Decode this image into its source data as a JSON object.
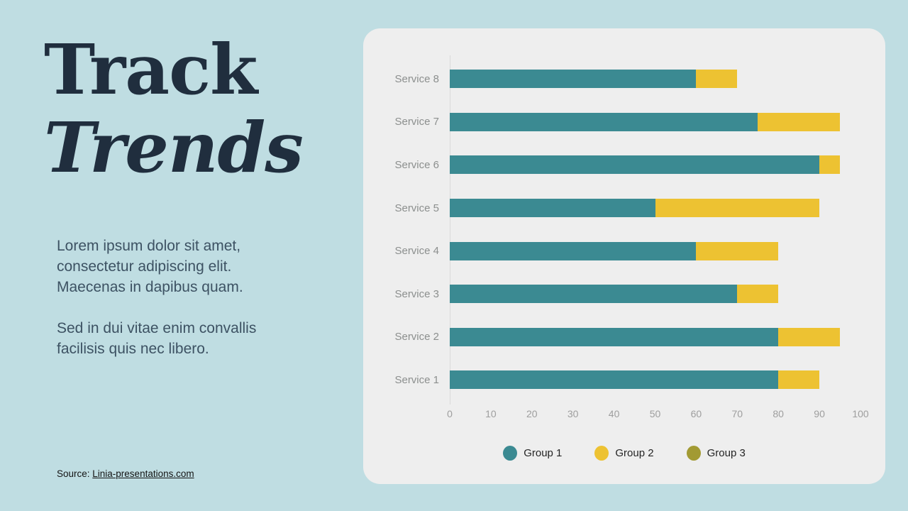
{
  "colors": {
    "page_bg": "#bfdde2",
    "card_bg": "#eeeeee",
    "title": "#202e3e",
    "body_text": "#3d5263",
    "axis_line": "#d9d9d9",
    "tick_text": "#9e9e9e",
    "category_text": "#8c8f8e",
    "group1": "#3b8a92",
    "group2": "#edc232",
    "group3": "#a29a33"
  },
  "title": {
    "line1": "Track",
    "line2": "Trends"
  },
  "body": {
    "paragraph1": "Lorem ipsum dolor sit amet, consectetur adipiscing elit. Maecenas in dapibus quam.",
    "paragraph2": "Sed in dui vitae enim convallis facilisis quis nec libero."
  },
  "source": {
    "prefix": "Source: ",
    "link_text": "Linia-presentations.com"
  },
  "chart_data": {
    "type": "bar",
    "orientation": "horizontal",
    "stacked": true,
    "title": "",
    "xlabel": "",
    "ylabel": "",
    "xlim": [
      0,
      100
    ],
    "xticks": [
      0,
      10,
      20,
      30,
      40,
      50,
      60,
      70,
      80,
      90,
      100
    ],
    "grid": false,
    "legend_position": "bottom",
    "categories": [
      "Service 1",
      "Service 2",
      "Service 3",
      "Service 4",
      "Service 5",
      "Service 6",
      "Service 7",
      "Service 8"
    ],
    "category_display_order": "reversed_top_to_bottom",
    "series": [
      {
        "name": "Group 1",
        "color": "#3b8a92",
        "values": [
          80,
          80,
          70,
          60,
          50,
          90,
          75,
          60
        ]
      },
      {
        "name": "Group 2",
        "color": "#edc232",
        "values": [
          10,
          15,
          10,
          20,
          40,
          5,
          20,
          10
        ]
      },
      {
        "name": "Group 3",
        "color": "#a29a33",
        "values": [
          0,
          0,
          0,
          0,
          0,
          0,
          0,
          0
        ]
      }
    ],
    "stack_totals": [
      90,
      95,
      80,
      80,
      90,
      95,
      95,
      70
    ]
  }
}
